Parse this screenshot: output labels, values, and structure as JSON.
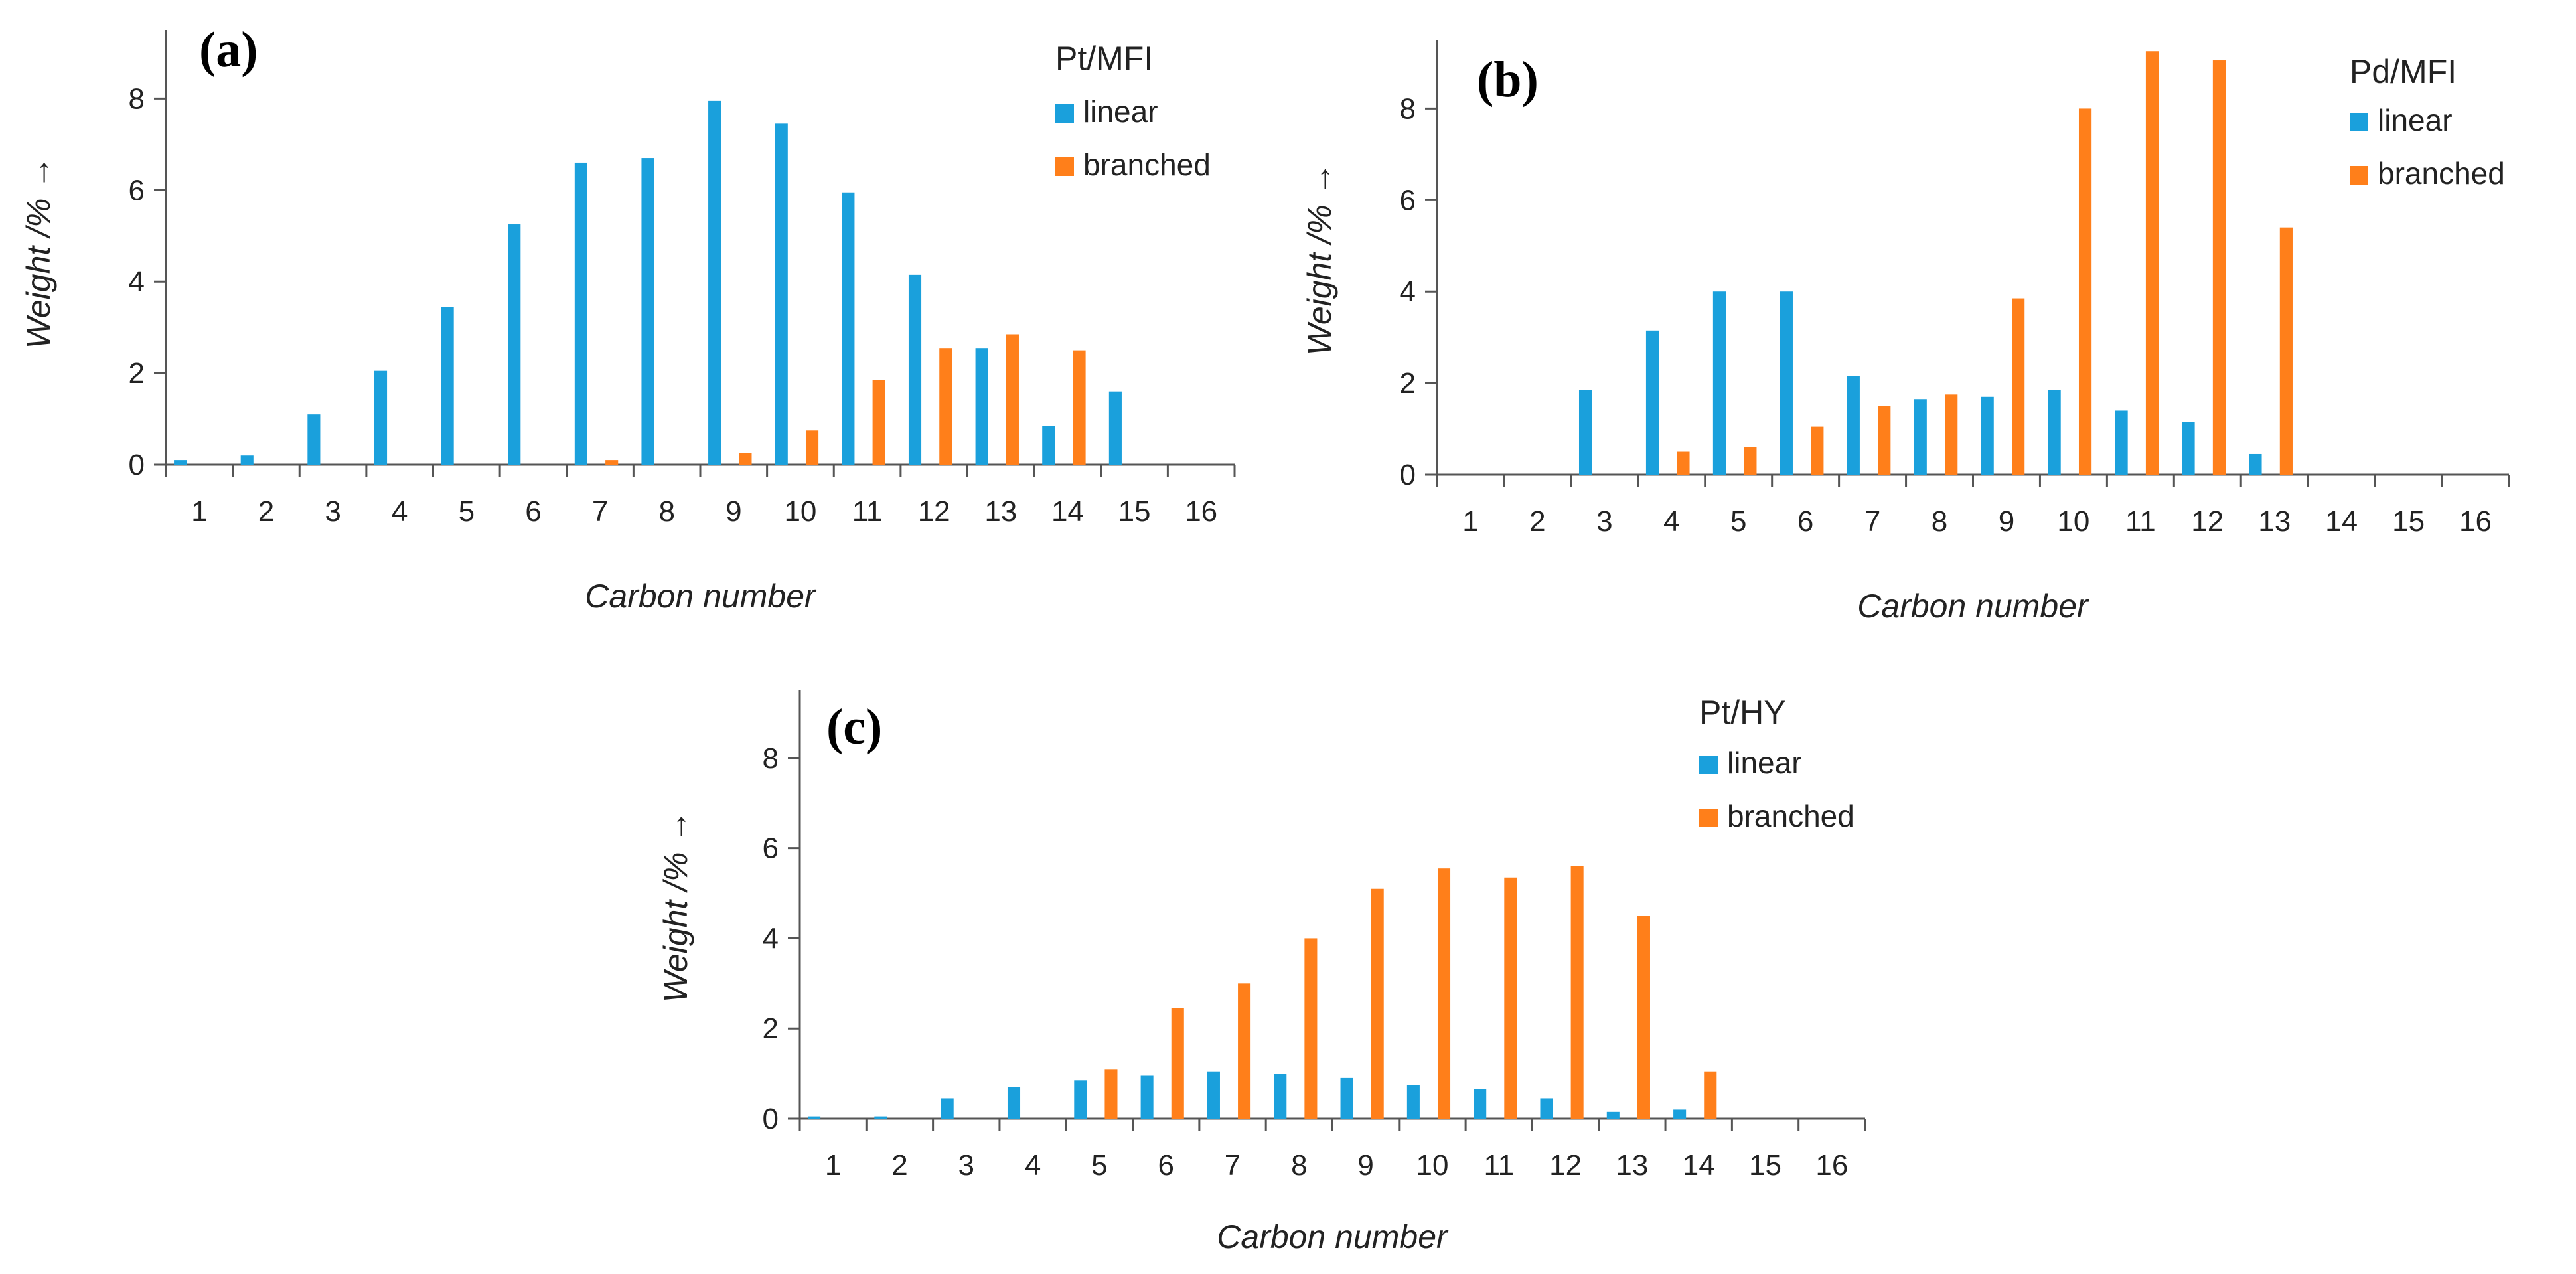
{
  "colors": {
    "linear": "#1aa0dc",
    "branched": "#ff7f1a",
    "axis": "#555555",
    "text": "#222222"
  },
  "chart_data": [
    {
      "type": "bar",
      "panel": "(a)",
      "legend_title": "Pt/MFI",
      "categories": [
        "1",
        "2",
        "3",
        "4",
        "5",
        "6",
        "7",
        "8",
        "9",
        "10",
        "11",
        "12",
        "13",
        "14",
        "15",
        "16"
      ],
      "series": [
        {
          "name": "linear",
          "values": [
            0.1,
            0.2,
            1.1,
            2.05,
            3.45,
            5.25,
            6.6,
            6.7,
            7.95,
            7.45,
            5.95,
            4.15,
            2.55,
            0.85,
            1.6,
            0
          ]
        },
        {
          "name": "branched",
          "values": [
            0,
            0,
            0,
            0,
            0,
            0,
            0.1,
            0,
            0.25,
            0.75,
            1.85,
            2.55,
            2.85,
            2.5,
            0,
            0
          ]
        }
      ],
      "xlabel": "Carbon number",
      "ylabel": "Weight /% →",
      "yticks": [
        "0",
        "2",
        "4",
        "6",
        "8"
      ],
      "ylim": [
        0,
        9.5
      ],
      "legend_position": "top-right",
      "grid": false
    },
    {
      "type": "bar",
      "panel": "(b)",
      "legend_title": "Pd/MFI",
      "categories": [
        "1",
        "2",
        "3",
        "4",
        "5",
        "6",
        "7",
        "8",
        "9",
        "10",
        "11",
        "12",
        "13",
        "14",
        "15",
        "16"
      ],
      "series": [
        {
          "name": "linear",
          "values": [
            0,
            0,
            1.85,
            3.15,
            4.0,
            4.0,
            2.15,
            1.65,
            1.7,
            1.85,
            1.4,
            1.15,
            0.45,
            0,
            0,
            0
          ]
        },
        {
          "name": "branched",
          "values": [
            0,
            0,
            0,
            0.5,
            0.6,
            1.05,
            1.5,
            1.75,
            3.85,
            8.0,
            9.25,
            9.05,
            5.4,
            0,
            0,
            0
          ]
        }
      ],
      "xlabel": "Carbon number",
      "ylabel": "Weight /% →",
      "yticks": [
        "0",
        "2",
        "4",
        "6",
        "8"
      ],
      "ylim": [
        0,
        9.5
      ],
      "legend_position": "top-right",
      "grid": false
    },
    {
      "type": "bar",
      "panel": "(c)",
      "legend_title": "Pt/HY",
      "categories": [
        "1",
        "2",
        "3",
        "4",
        "5",
        "6",
        "7",
        "8",
        "9",
        "10",
        "11",
        "12",
        "13",
        "14",
        "15",
        "16"
      ],
      "series": [
        {
          "name": "linear",
          "values": [
            0.05,
            0.05,
            0.45,
            0.7,
            0.85,
            0.95,
            1.05,
            1.0,
            0.9,
            0.75,
            0.65,
            0.45,
            0.15,
            0.2,
            0,
            0
          ]
        },
        {
          "name": "branched",
          "values": [
            0,
            0,
            0,
            0,
            1.1,
            2.45,
            3.0,
            4.0,
            5.1,
            5.55,
            5.35,
            5.6,
            4.5,
            1.05,
            0,
            0
          ]
        }
      ],
      "xlabel": "Carbon number",
      "ylabel": "Weight /% →",
      "yticks": [
        "0",
        "2",
        "4",
        "6",
        "8"
      ],
      "ylim": [
        0,
        9.5
      ],
      "legend_position": "top-right",
      "grid": false
    }
  ]
}
